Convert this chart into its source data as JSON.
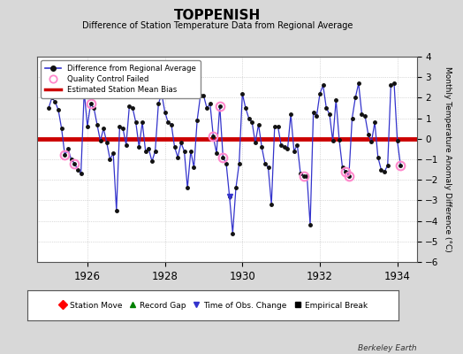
{
  "title": "TOPPENISH",
  "subtitle": "Difference of Station Temperature Data from Regional Average",
  "ylabel": "Monthly Temperature Anomaly Difference (°C)",
  "xlabel_years": [
    1926,
    1928,
    1930,
    1932,
    1934
  ],
  "bias": 0.0,
  "ylim": [
    -6,
    4
  ],
  "yticks": [
    -6,
    -5,
    -4,
    -3,
    -2,
    -1,
    0,
    1,
    2,
    3,
    4
  ],
  "bg_color": "#d8d8d8",
  "plot_bg_color": "#ffffff",
  "line_color": "#3333cc",
  "bias_color": "#cc0000",
  "dot_color": "#111111",
  "qc_color": "#ff88cc",
  "time_series": [
    [
      1925.0,
      1.5
    ],
    [
      1925.083,
      2.0
    ],
    [
      1925.167,
      1.8
    ],
    [
      1925.25,
      1.4
    ],
    [
      1925.333,
      0.5
    ],
    [
      1925.417,
      -0.8
    ],
    [
      1925.5,
      -0.5
    ],
    [
      1925.583,
      -1.0
    ],
    [
      1925.667,
      -1.2
    ],
    [
      1925.75,
      -1.5
    ],
    [
      1925.833,
      -1.7
    ],
    [
      1925.917,
      2.3
    ],
    [
      1926.0,
      0.6
    ],
    [
      1926.083,
      1.7
    ],
    [
      1926.167,
      1.5
    ],
    [
      1926.25,
      0.7
    ],
    [
      1926.333,
      -0.1
    ],
    [
      1926.417,
      0.5
    ],
    [
      1926.5,
      -0.2
    ],
    [
      1926.583,
      -1.0
    ],
    [
      1926.667,
      -0.7
    ],
    [
      1926.75,
      -3.5
    ],
    [
      1926.833,
      0.6
    ],
    [
      1926.917,
      0.5
    ],
    [
      1927.0,
      -0.3
    ],
    [
      1927.083,
      1.6
    ],
    [
      1927.167,
      1.5
    ],
    [
      1927.25,
      0.8
    ],
    [
      1927.333,
      -0.4
    ],
    [
      1927.417,
      0.8
    ],
    [
      1927.5,
      -0.6
    ],
    [
      1927.583,
      -0.5
    ],
    [
      1927.667,
      -1.1
    ],
    [
      1927.75,
      -0.6
    ],
    [
      1927.833,
      1.7
    ],
    [
      1927.917,
      2.2
    ],
    [
      1928.0,
      1.3
    ],
    [
      1928.083,
      0.8
    ],
    [
      1928.167,
      0.7
    ],
    [
      1928.25,
      -0.4
    ],
    [
      1928.333,
      -0.9
    ],
    [
      1928.417,
      -0.2
    ],
    [
      1928.5,
      -0.6
    ],
    [
      1928.583,
      -2.4
    ],
    [
      1928.667,
      -0.6
    ],
    [
      1928.75,
      -1.4
    ],
    [
      1928.833,
      0.9
    ],
    [
      1928.917,
      2.1
    ],
    [
      1929.0,
      2.1
    ],
    [
      1929.083,
      1.5
    ],
    [
      1929.167,
      1.7
    ],
    [
      1929.25,
      0.1
    ],
    [
      1929.333,
      -0.7
    ],
    [
      1929.417,
      1.6
    ],
    [
      1929.5,
      -0.9
    ],
    [
      1929.583,
      -1.2
    ],
    [
      1929.667,
      -2.8
    ],
    [
      1929.75,
      -4.6
    ],
    [
      1929.833,
      -2.4
    ],
    [
      1929.917,
      -1.2
    ],
    [
      1930.0,
      2.2
    ],
    [
      1930.083,
      1.5
    ],
    [
      1930.167,
      1.0
    ],
    [
      1930.25,
      0.8
    ],
    [
      1930.333,
      -0.2
    ],
    [
      1930.417,
      0.7
    ],
    [
      1930.5,
      -0.4
    ],
    [
      1930.583,
      -1.2
    ],
    [
      1930.667,
      -1.4
    ],
    [
      1930.75,
      -3.2
    ],
    [
      1930.833,
      0.6
    ],
    [
      1930.917,
      0.6
    ],
    [
      1931.0,
      -0.3
    ],
    [
      1931.083,
      -0.4
    ],
    [
      1931.167,
      -0.5
    ],
    [
      1931.25,
      1.2
    ],
    [
      1931.333,
      -0.6
    ],
    [
      1931.417,
      -0.3
    ],
    [
      1931.5,
      -1.7
    ],
    [
      1931.583,
      -1.8
    ],
    [
      1931.667,
      -1.8
    ],
    [
      1931.75,
      -4.2
    ],
    [
      1931.833,
      1.3
    ],
    [
      1931.917,
      1.1
    ],
    [
      1932.0,
      2.2
    ],
    [
      1932.083,
      2.6
    ],
    [
      1932.167,
      1.5
    ],
    [
      1932.25,
      1.2
    ],
    [
      1932.333,
      -0.1
    ],
    [
      1932.417,
      1.9
    ],
    [
      1932.5,
      -0.05
    ],
    [
      1932.583,
      -1.4
    ],
    [
      1932.667,
      -1.6
    ],
    [
      1932.75,
      -1.8
    ],
    [
      1932.833,
      1.0
    ],
    [
      1932.917,
      2.0
    ],
    [
      1933.0,
      2.7
    ],
    [
      1933.083,
      1.2
    ],
    [
      1933.167,
      1.1
    ],
    [
      1933.25,
      0.2
    ],
    [
      1933.333,
      -0.15
    ],
    [
      1933.417,
      0.8
    ],
    [
      1933.5,
      -0.9
    ],
    [
      1933.583,
      -1.5
    ],
    [
      1933.667,
      -1.6
    ],
    [
      1933.75,
      -1.3
    ],
    [
      1933.833,
      2.6
    ],
    [
      1933.917,
      2.7
    ],
    [
      1934.0,
      -0.1
    ],
    [
      1934.083,
      -1.3
    ]
  ],
  "qc_failed": [
    [
      1925.417,
      -0.8
    ],
    [
      1925.667,
      -1.2
    ],
    [
      1926.083,
      1.7
    ],
    [
      1929.25,
      0.1
    ],
    [
      1929.417,
      1.6
    ],
    [
      1929.5,
      -0.9
    ],
    [
      1931.583,
      -1.8
    ],
    [
      1932.667,
      -1.6
    ],
    [
      1932.75,
      -1.8
    ],
    [
      1934.083,
      -1.3
    ]
  ],
  "obs_change_times": [
    1929.667
  ],
  "obs_change_values": [
    -2.8
  ],
  "footer": "Berkeley Earth",
  "xlim": [
    1924.7,
    1934.5
  ]
}
